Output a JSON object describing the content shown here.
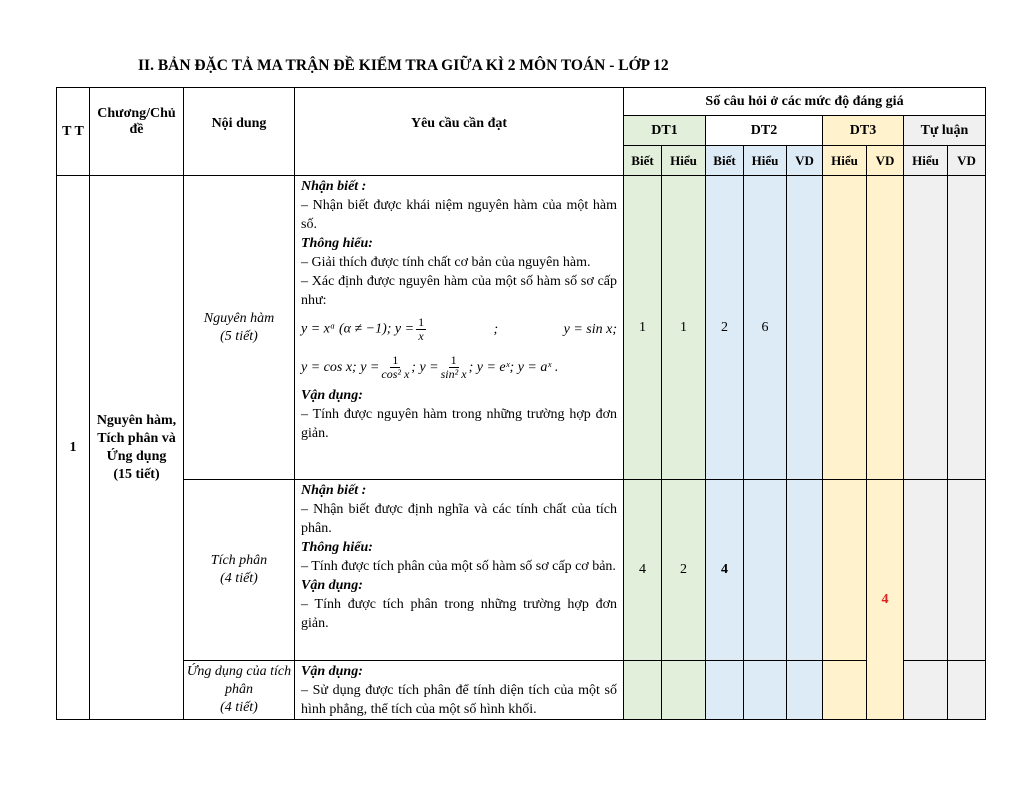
{
  "title": "II. BẢN ĐẶC TẢ MA TRẬN ĐỀ KIỂM TRA GIỮA KÌ 2 MÔN TOÁN - LỚP 12",
  "header": {
    "tt": "T T",
    "chapter": "Chương/Chủ đề",
    "content": "Nội dung",
    "requirement": "Yêu cầu cần đạt",
    "levels": "Số câu hỏi ở các mức độ đáng giá",
    "groups": [
      "DT1",
      "DT2",
      "DT3",
      "Tự luận"
    ],
    "sub": [
      "Biết",
      "Hiểu",
      "Biết",
      "Hiểu",
      "VD",
      "Hiểu",
      "VD",
      "Hiểu",
      "VD"
    ]
  },
  "colors": {
    "dt1": "#e2efda",
    "dt2": "#ddebf7",
    "dt3": "#fff2cc",
    "tu_luan": "#f0f0f0",
    "highlight": "#e02020"
  },
  "row": {
    "tt": "1",
    "chapter": "Nguyên hàm, Tích phân và Ứng dụng (15 tiết)",
    "items": [
      {
        "content": "Nguyên hàm",
        "hours": "(5 tiết)",
        "nb": "Nhận biết :",
        "nb1": "– Nhận biết được khái niệm nguyên hàm của một hàm số.",
        "th": "Thông hiểu:",
        "th1": "– Giải thích được tính chất cơ bản của nguyên hàm.",
        "th2": "– Xác định được nguyên hàm của một số hàm số sơ cấp như:",
        "f1": "y = xᵅ (α ≠ −1); y =",
        "f1n": "1",
        "f1d": "x",
        "f1b": ";",
        "f1c": "y = sin x;",
        "f2a": "y = cos x; y =",
        "f2n": "1",
        "f2d": "cos² x",
        "f2b": "; y =",
        "f2n2": "1",
        "f2d2": "sin² x",
        "f2c": "; y = eˣ; y = aˣ .",
        "vd": "Vận dụng:",
        "vd1": "– Tính được nguyên hàm trong những trường hợp đơn giản.",
        "values": [
          "1",
          "1",
          "2",
          "6",
          "",
          "",
          "",
          "",
          ""
        ]
      },
      {
        "content": "Tích phân",
        "hours": "(4 tiết)",
        "nb": "Nhận biết :",
        "nb1": "– Nhận biết được định nghĩa và các tính chất của tích phân.",
        "th": "Thông hiểu:",
        "th1": "– Tính được tích phân của một số hàm số sơ cấp cơ bản.",
        "vd": "Vận dụng:",
        "vd1": "– Tính được tích phân trong những trường hợp đơn giản.",
        "values": [
          "4",
          "2",
          "4",
          "",
          "",
          "",
          "4",
          "",
          ""
        ]
      },
      {
        "content": "Ứng dụng của tích phân",
        "hours": "(4 tiết)",
        "vd": "Vận dụng:",
        "vd1": "– Sử dụng được tích phân để tính diện tích của một số hình phẳng, thể tích của một số hình khối.",
        "values": [
          "",
          "",
          "",
          "",
          "",
          "",
          "",
          "",
          ""
        ]
      }
    ]
  }
}
